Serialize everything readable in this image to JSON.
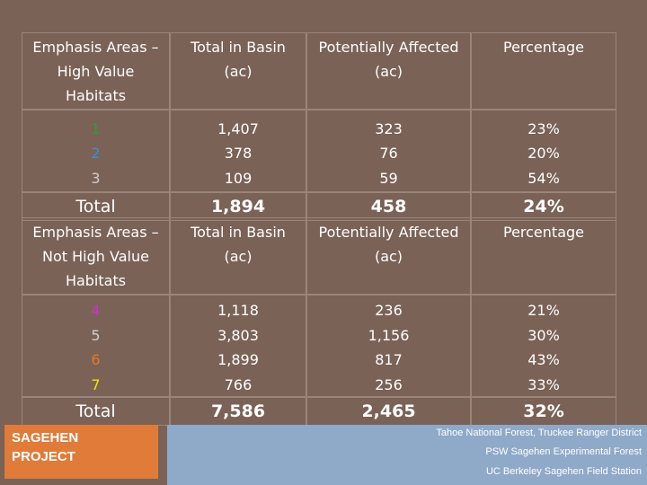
{
  "colors": {
    "background": "#7a6257",
    "footer_orange": "#e07b39",
    "footer_blue": "#8fa9c9"
  },
  "table1": {
    "headers": [
      "Emphasis Areas – High Value Habitats",
      "Total in Basin (ac)",
      "Potentially Affected (ac)",
      "Percentage"
    ],
    "rows": [
      {
        "id": "1",
        "color": "#2e9d3a",
        "total": "1,407",
        "affected": "323",
        "pct": "23%"
      },
      {
        "id": "2",
        "color": "#3b8fd6",
        "total": "378",
        "affected": "76",
        "pct": "20%"
      },
      {
        "id": "3",
        "color": "#cfcfcf",
        "total": "109",
        "affected": "59",
        "pct": "54%"
      }
    ],
    "total": {
      "label": "Total",
      "total": "1,894",
      "affected": "458",
      "pct": "24%"
    }
  },
  "table2": {
    "headers": [
      "Emphasis Areas – Not High Value Habitats",
      "Total in Basin (ac)",
      "Potentially Affected (ac)",
      "Percentage"
    ],
    "rows": [
      {
        "id": "4",
        "color": "#cc33cc",
        "total": "1,118",
        "affected": "236",
        "pct": "21%"
      },
      {
        "id": "5",
        "color": "#cfcfcf",
        "total": "3,803",
        "affected": "1,156",
        "pct": "30%"
      },
      {
        "id": "6",
        "color": "#e8772e",
        "total": "1,899",
        "affected": "817",
        "pct": "43%"
      },
      {
        "id": "7",
        "color": "#f2e600",
        "total": "766",
        "affected": "256",
        "pct": "33%"
      }
    ],
    "total": {
      "label": "Total",
      "total": "7,586",
      "affected": "2,465",
      "pct": "32%"
    }
  },
  "footer": {
    "project_line1": "SAGEHEN",
    "project_line2": "PROJECT",
    "line1": "Tahoe National Forest, Truckee Ranger District",
    "line2": "PSW Sagehen Experimental Forest",
    "line3": "UC Berkeley Sagehen Field Station"
  }
}
